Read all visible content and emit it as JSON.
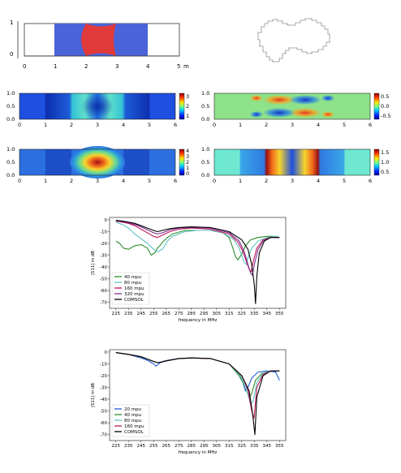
{
  "geometry_panel": {
    "x_ticks": [
      "0",
      "1",
      "2",
      "3",
      "4",
      "5"
    ],
    "x_unit": "m",
    "y_ticks": [
      "1",
      "0"
    ],
    "colors": {
      "substrate": "#4a63d8",
      "inclusion": "#e03a3a",
      "frame": "#222222"
    }
  },
  "heatmaps": {
    "y_ticks": [
      "1.0",
      "0.5",
      "0.0"
    ],
    "x_ticks": [
      "0",
      "1",
      "2",
      "3",
      "4",
      "5",
      "6"
    ],
    "panels": [
      {
        "name": "top-left",
        "colorbar_ticks": [
          "3",
          "2",
          "1"
        ]
      },
      {
        "name": "top-right",
        "colorbar_ticks": [
          "0.5",
          "0.0",
          "-0.5"
        ]
      },
      {
        "name": "bottom-left",
        "colorbar_ticks": [
          "4",
          "3",
          "2",
          "1",
          "0"
        ]
      },
      {
        "name": "bottom-right",
        "colorbar_ticks": [
          "1.5",
          "1.0",
          "0.5"
        ]
      }
    ]
  },
  "chart_data": [
    {
      "type": "line",
      "title": "",
      "xlabel": "frequency in MHz",
      "ylabel": "|S11| in dB",
      "xlim": [
        220,
        360
      ],
      "ylim": [
        -75,
        2
      ],
      "x_ticks": [
        "225",
        "235",
        "245",
        "255",
        "265",
        "275",
        "285",
        "295",
        "305",
        "315",
        "325",
        "335",
        "345",
        "355"
      ],
      "y_ticks": [
        "0",
        "-10",
        "-20",
        "-30",
        "-40",
        "-50",
        "-60",
        "-70"
      ],
      "legend_position": "lower-left",
      "series": [
        {
          "name": "40 mpu",
          "color": "#2e8b2e",
          "x": [
            225,
            228,
            231,
            235,
            240,
            245,
            250,
            253,
            256,
            258,
            260,
            262,
            264,
            266,
            270,
            280,
            290,
            300,
            310,
            315,
            318,
            320,
            322,
            325,
            328,
            332,
            338,
            345,
            352,
            355
          ],
          "y": [
            -18,
            -20,
            -24,
            -25,
            -22,
            -21,
            -24,
            -30,
            -28,
            -24,
            -22,
            -19,
            -17,
            -15,
            -12,
            -9,
            -9,
            -9,
            -11,
            -15,
            -24,
            -31,
            -34,
            -29,
            -22,
            -17,
            -15,
            -14,
            -14,
            -15
          ]
        },
        {
          "name": "80 mpu",
          "color": "#5fc3c3",
          "x": [
            225,
            230,
            235,
            240,
            245,
            250,
            255,
            258,
            262,
            266,
            270,
            280,
            290,
            300,
            310,
            318,
            322,
            325,
            327,
            328.5,
            330,
            333,
            338,
            345,
            352,
            355
          ],
          "y": [
            -2,
            -4,
            -7,
            -12,
            -16,
            -20,
            -25,
            -27,
            -25,
            -18,
            -14,
            -10,
            -9,
            -9,
            -11,
            -16,
            -22,
            -30,
            -36,
            -38,
            -32,
            -24,
            -18,
            -15,
            -14,
            -15
          ]
        },
        {
          "name": "160 mpu",
          "color": "#c2185b",
          "x": [
            225,
            230,
            235,
            240,
            245,
            250,
            255,
            258,
            262,
            268,
            275,
            285,
            300,
            315,
            322,
            326,
            329,
            331,
            332.5,
            334,
            337,
            342,
            348,
            355
          ],
          "y": [
            -1,
            -2,
            -3,
            -5,
            -8,
            -11,
            -14,
            -15,
            -13,
            -10,
            -8,
            -7,
            -8,
            -12,
            -19,
            -27,
            -36,
            -42,
            -44,
            -36,
            -24,
            -17,
            -15,
            -15
          ]
        },
        {
          "name": "320 mpu",
          "color": "#7b2d8e",
          "x": [
            225,
            230,
            235,
            240,
            245,
            250,
            255,
            258,
            262,
            268,
            275,
            285,
            300,
            315,
            323,
            327,
            330,
            332,
            333.5,
            335,
            338,
            342,
            348,
            355
          ],
          "y": [
            -1,
            -1.5,
            -2.5,
            -4,
            -6,
            -8.5,
            -11,
            -12,
            -11,
            -8.5,
            -7,
            -6.5,
            -7,
            -11,
            -18,
            -27,
            -38,
            -45,
            -47,
            -38,
            -25,
            -18,
            -15,
            -15
          ]
        },
        {
          "name": "COMSOL",
          "color": "#000000",
          "x": [
            225,
            230,
            235,
            240,
            245,
            250,
            255,
            258,
            262,
            268,
            275,
            285,
            300,
            315,
            325,
            330,
            333,
            335,
            336,
            337,
            339,
            343,
            348,
            355
          ],
          "y": [
            -0.5,
            -1,
            -2,
            -3,
            -5,
            -7,
            -9,
            -10,
            -9,
            -7.5,
            -6.5,
            -6,
            -6.5,
            -10,
            -17,
            -25,
            -38,
            -55,
            -71,
            -48,
            -28,
            -18,
            -15,
            -15
          ]
        }
      ]
    },
    {
      "type": "line",
      "title": "",
      "xlabel": "frequency in MHz",
      "ylabel": "|S11| in dB",
      "xlim": [
        220,
        360
      ],
      "ylim": [
        -75,
        2
      ],
      "x_ticks": [
        "225",
        "235",
        "245",
        "255",
        "265",
        "275",
        "285",
        "295",
        "305",
        "315",
        "325",
        "335",
        "345",
        "355"
      ],
      "y_ticks": [
        "0",
        "-10",
        "-20",
        "-30",
        "-40",
        "-50",
        "-60",
        "-70"
      ],
      "legend_position": "lower-left",
      "series": [
        {
          "name": "20 mpu",
          "color": "#1f5fd6",
          "x": [
            225,
            235,
            245,
            250,
            255,
            257,
            259,
            262,
            266,
            275,
            285,
            300,
            315,
            322,
            326,
            328,
            330,
            333,
            338,
            345,
            352,
            355
          ],
          "y": [
            -0.5,
            -2,
            -5,
            -7,
            -10,
            -12,
            -10,
            -8,
            -7,
            -5.5,
            -5,
            -5.5,
            -10,
            -18,
            -26,
            -33,
            -30,
            -22,
            -17,
            -16,
            -17,
            -24
          ]
        },
        {
          "name": "40 mpu",
          "color": "#2e8b2e",
          "x": [
            225,
            235,
            245,
            250,
            255,
            258,
            261,
            265,
            275,
            285,
            300,
            315,
            323,
            328,
            331,
            333,
            336,
            341,
            348,
            355
          ],
          "y": [
            -0.5,
            -2,
            -4,
            -6,
            -8,
            -9,
            -8.5,
            -7.5,
            -5.5,
            -5,
            -5.5,
            -10,
            -20,
            -30,
            -39,
            -35,
            -24,
            -18,
            -16,
            -16
          ]
        },
        {
          "name": "80 mpu",
          "color": "#5fc3c3",
          "x": [
            225,
            235,
            245,
            250,
            255,
            258,
            261,
            265,
            275,
            285,
            300,
            315,
            324,
            329,
            332,
            334,
            337,
            342,
            348,
            355
          ],
          "y": [
            -0.5,
            -2,
            -4,
            -6,
            -8,
            -9,
            -8.5,
            -7.5,
            -5.5,
            -5,
            -5.5,
            -10,
            -20,
            -32,
            -44,
            -42,
            -26,
            -18,
            -16,
            -16
          ]
        },
        {
          "name": "160 mpu",
          "color": "#c2185b",
          "x": [
            225,
            235,
            245,
            250,
            255,
            258,
            261,
            265,
            275,
            285,
            300,
            315,
            325,
            330,
            333,
            334.8,
            337,
            342,
            348,
            355
          ],
          "y": [
            -0.5,
            -2,
            -4,
            -6,
            -8,
            -9,
            -8.5,
            -7.5,
            -5.5,
            -5,
            -5.5,
            -10,
            -20,
            -32,
            -50,
            -56,
            -30,
            -19,
            -16,
            -16
          ]
        },
        {
          "name": "COMSOL",
          "color": "#000000",
          "x": [
            225,
            235,
            245,
            250,
            255,
            258,
            261,
            265,
            275,
            285,
            300,
            315,
            325,
            331,
            334,
            335.5,
            337,
            342,
            348,
            355
          ],
          "y": [
            -0.5,
            -2,
            -4,
            -6,
            -8,
            -9,
            -8.5,
            -7.5,
            -5.5,
            -5,
            -5.5,
            -10,
            -20,
            -33,
            -55,
            -70,
            -38,
            -20,
            -16,
            -16
          ]
        }
      ]
    }
  ]
}
